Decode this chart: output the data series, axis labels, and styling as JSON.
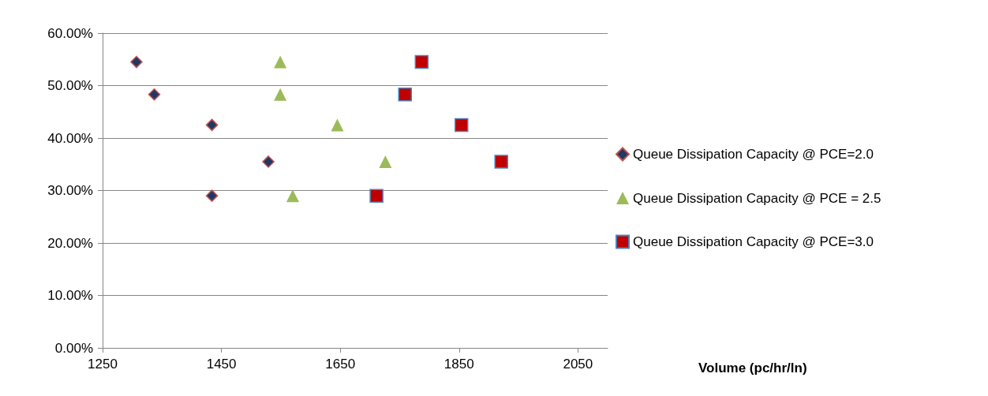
{
  "chart_data": {
    "type": "scatter",
    "annotations": [
      "Volume (pc/hr/ln)"
    ],
    "xlim": [
      1250,
      2100
    ],
    "xticks": [
      1250,
      1450,
      1650,
      1850,
      2050
    ],
    "ylim": [
      0,
      60
    ],
    "yticks": [
      {
        "value": 0,
        "label": "0.00%"
      },
      {
        "value": 10,
        "label": "10.00%"
      },
      {
        "value": 20,
        "label": "20.00%"
      },
      {
        "value": 30,
        "label": "30.00%"
      },
      {
        "value": 40,
        "label": "40.00%"
      },
      {
        "value": 50,
        "label": "50.00%"
      },
      {
        "value": 60,
        "label": "60.00%"
      }
    ],
    "grid": "y",
    "legend": "right",
    "series": [
      {
        "name": "Queue Dissipation Capacity @ PCE=2.0",
        "color": "#1f3864",
        "marker": "diamond",
        "x": [
          1307,
          1337,
          1434,
          1529,
          1434
        ],
        "values": [
          54.5,
          48.3,
          42.5,
          35.5,
          29.0
        ]
      },
      {
        "name": "Queue Dissipation Capacity @ PCE = 2.5",
        "color": "#9bbb59",
        "marker": "triangle",
        "x": [
          1549,
          1549,
          1645,
          1726,
          1570
        ],
        "values": [
          54.5,
          48.3,
          42.5,
          35.5,
          29.0
        ]
      },
      {
        "name": "Queue Dissipation Capacity @ PCE=3.0",
        "color": "#c00000",
        "marker": "square",
        "x": [
          1787,
          1759,
          1854,
          1921,
          1711
        ],
        "values": [
          54.5,
          48.3,
          42.5,
          35.5,
          29.0
        ]
      }
    ]
  }
}
